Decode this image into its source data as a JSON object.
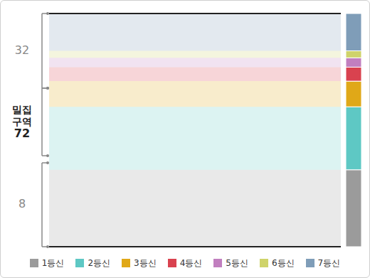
{
  "chart_data": {
    "type": "bar",
    "stacked": true,
    "categories": [
      null
    ],
    "ylim": [
      0,
      100
    ],
    "tick_labels": false,
    "legend": "bottom",
    "series": [
      {
        "name": "1등신",
        "color": "#9b9b9b",
        "values": [
          33
        ]
      },
      {
        "name": "2등신",
        "color": "#5ec8c4",
        "values": [
          27
        ]
      },
      {
        "name": "3등신",
        "color": "#e0a818",
        "values": [
          11
        ]
      },
      {
        "name": "4등신",
        "color": "#d9424f",
        "values": [
          6
        ]
      },
      {
        "name": "5등신",
        "color": "#c17fbf",
        "values": [
          4
        ]
      },
      {
        "name": "6등신",
        "color": "#cfd36a",
        "values": [
          3
        ]
      },
      {
        "name": "7등신",
        "color": "#7f9db8",
        "values": [
          16
        ]
      }
    ],
    "regions": [
      {
        "value": 8,
        "range": [
          0,
          36
        ]
      },
      {
        "label": "밀집 구역",
        "value": 72,
        "range": [
          39,
          68
        ]
      },
      {
        "value": 32,
        "range": [
          68,
          100
        ]
      }
    ]
  }
}
